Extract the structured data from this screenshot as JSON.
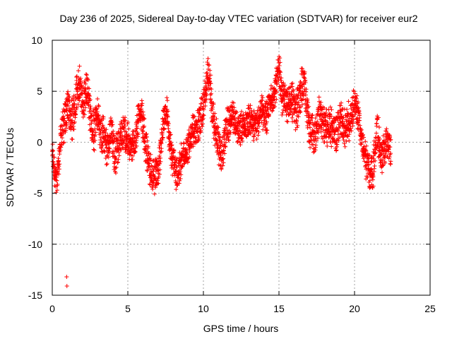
{
  "chart_data": {
    "type": "scatter",
    "title": "Day 236 of 2025, Sidereal Day-to-day VTEC variation (SDTVAR) for receiver eur2",
    "xlabel": "GPS time / hours",
    "ylabel": "SDTVAR / TECUs",
    "xlim": [
      0,
      25
    ],
    "ylim": [
      -15,
      10
    ],
    "xticks": [
      0,
      5,
      10,
      15,
      20,
      25
    ],
    "yticks": [
      -15,
      -10,
      -5,
      0,
      5,
      10
    ],
    "grid": true,
    "marker": "plus",
    "series_color": "#ff0000",
    "series": [
      {
        "name": "eur2",
        "trend_x": [
          0.0,
          0.1,
          0.3,
          0.5,
          0.7,
          1.0,
          1.3,
          1.6,
          1.8,
          2.0,
          2.3,
          2.6,
          2.8,
          3.0,
          3.3,
          3.6,
          3.9,
          4.1,
          4.4,
          4.7,
          5.0,
          5.2,
          5.5,
          5.8,
          6.0,
          6.3,
          6.5,
          6.8,
          7.0,
          7.3,
          7.6,
          7.9,
          8.2,
          8.5,
          8.8,
          9.1,
          9.4,
          9.7,
          9.9,
          10.1,
          10.3,
          10.6,
          10.9,
          11.2,
          11.5,
          11.8,
          12.1,
          12.4,
          12.7,
          13.0,
          13.3,
          13.6,
          13.9,
          14.2,
          14.5,
          14.8,
          15.0,
          15.2,
          15.5,
          15.8,
          16.1,
          16.4,
          16.7,
          17.0,
          17.3,
          17.6,
          17.9,
          18.2,
          18.5,
          18.8,
          19.1,
          19.4,
          19.7,
          20.0,
          20.3,
          20.6,
          20.9,
          21.2,
          21.5,
          21.8,
          22.1,
          22.4
        ],
        "trend_y": [
          -1.0,
          -2.5,
          -3.5,
          -1.0,
          1.5,
          3.5,
          2.0,
          4.5,
          5.5,
          4.0,
          4.8,
          2.0,
          1.0,
          2.5,
          1.0,
          -0.5,
          1.5,
          -1.5,
          0.0,
          1.0,
          0.5,
          -1.0,
          0.5,
          3.0,
          2.0,
          -1.5,
          -2.5,
          -3.5,
          -3.0,
          1.5,
          3.0,
          -1.5,
          -3.0,
          -2.0,
          -1.0,
          0.0,
          1.5,
          1.5,
          3.0,
          4.5,
          7.0,
          3.0,
          0.0,
          -1.0,
          1.0,
          2.5,
          2.0,
          1.5,
          1.0,
          2.5,
          1.5,
          2.0,
          3.0,
          2.5,
          4.0,
          5.5,
          7.5,
          4.5,
          3.5,
          4.5,
          2.5,
          5.0,
          5.5,
          1.5,
          0.5,
          2.5,
          2.0,
          1.5,
          1.5,
          0.5,
          2.5,
          1.0,
          2.5,
          3.5,
          2.5,
          -1.0,
          -2.5,
          -3.5,
          1.5,
          -2.0,
          0.5,
          -1.0
        ],
        "spread": [
          1.0,
          1.2,
          1.3,
          1.5,
          1.5,
          1.5,
          1.5,
          1.5,
          1.5,
          1.5,
          1.5,
          1.5,
          1.5,
          1.5,
          1.5,
          1.5,
          1.5,
          1.5,
          1.5,
          1.5,
          1.2,
          1.2,
          1.2,
          1.2,
          1.5,
          1.5,
          1.5,
          1.2,
          1.2,
          1.0,
          1.0,
          1.2,
          1.2,
          1.2,
          1.2,
          1.2,
          1.2,
          1.2,
          1.5,
          1.5,
          1.5,
          1.5,
          1.5,
          1.5,
          1.5,
          1.2,
          1.2,
          1.2,
          1.2,
          1.2,
          1.2,
          1.2,
          1.2,
          1.2,
          1.2,
          1.5,
          1.5,
          1.5,
          1.5,
          1.5,
          1.5,
          1.5,
          1.5,
          1.5,
          1.5,
          1.5,
          1.5,
          1.5,
          1.5,
          1.5,
          1.5,
          1.5,
          1.5,
          1.2,
          1.2,
          1.5,
          1.5,
          1.5,
          1.5,
          1.5,
          1.5,
          1.5
        ],
        "outliers": [
          [
            0.95,
            -13.2
          ],
          [
            0.97,
            -14.1
          ]
        ]
      }
    ]
  }
}
